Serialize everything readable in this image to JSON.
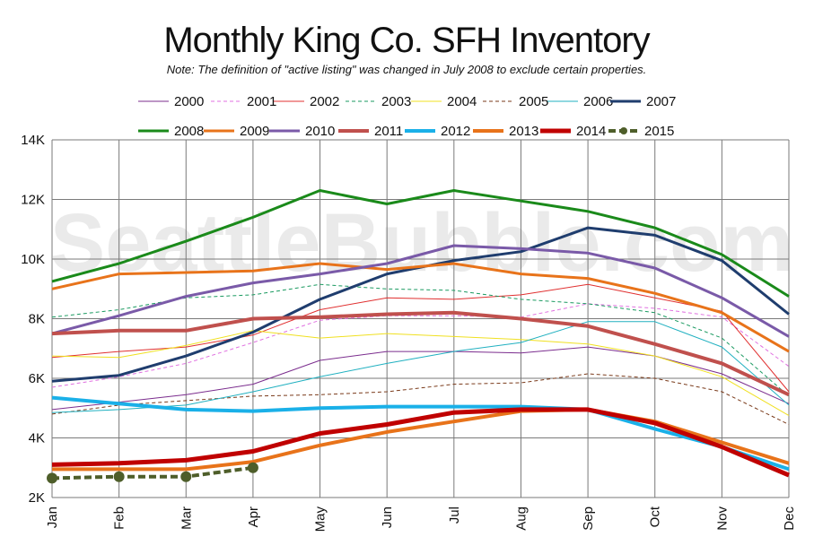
{
  "chart_data": {
    "type": "line",
    "title": "Monthly King Co. SFH Inventory",
    "subtitle": "Note: The definition of \"active listing\" was changed in July 2008 to exclude certain properties.",
    "watermark": "SeattleBubble.com",
    "xlabel": "",
    "ylabel": "",
    "x": [
      "Jan",
      "Feb",
      "Mar",
      "Apr",
      "May",
      "Jun",
      "Jul",
      "Aug",
      "Sep",
      "Oct",
      "Nov",
      "Dec"
    ],
    "ylim": [
      2000,
      14000
    ],
    "yticks": [
      2000,
      4000,
      6000,
      8000,
      10000,
      12000,
      14000
    ],
    "yticklabels": [
      "2K",
      "4K",
      "6K",
      "8K",
      "10K",
      "12K",
      "14K"
    ],
    "grid": true,
    "legend_position": "top",
    "series": [
      {
        "name": "2000",
        "color": "#7b2d8e",
        "style": "solid-thin",
        "values": [
          4950,
          5200,
          5450,
          5800,
          6600,
          6900,
          6900,
          6850,
          7050,
          6750,
          6150,
          5150
        ]
      },
      {
        "name": "2001",
        "color": "#e070e0",
        "style": "dashed-thin",
        "values": [
          5700,
          6050,
          6500,
          7200,
          7950,
          8100,
          8100,
          8050,
          8500,
          8350,
          8050,
          6400
        ]
      },
      {
        "name": "2002",
        "color": "#e03030",
        "style": "solid-thin",
        "values": [
          6700,
          6900,
          7050,
          7450,
          8300,
          8700,
          8650,
          8800,
          9150,
          8700,
          8250,
          5550
        ]
      },
      {
        "name": "2003",
        "color": "#1a9a60",
        "style": "dashed-thin",
        "values": [
          8050,
          8300,
          8700,
          8800,
          9150,
          9000,
          8950,
          8650,
          8500,
          8200,
          7350,
          5400
        ]
      },
      {
        "name": "2004",
        "color": "#f0e020",
        "style": "solid-thin",
        "values": [
          6750,
          6700,
          7100,
          7600,
          7350,
          7500,
          7400,
          7300,
          7150,
          6750,
          6050,
          4750
        ]
      },
      {
        "name": "2005",
        "color": "#7a3a1a",
        "style": "dashed-thin",
        "values": [
          4800,
          5100,
          5250,
          5400,
          5450,
          5550,
          5800,
          5850,
          6150,
          6000,
          5550,
          4450
        ]
      },
      {
        "name": "2006",
        "color": "#20b0c0",
        "style": "solid-thin",
        "values": [
          4850,
          4950,
          5100,
          5550,
          6050,
          6500,
          6900,
          7200,
          7900,
          7900,
          7050,
          5100
        ]
      },
      {
        "name": "2007",
        "color": "#1f3d6e",
        "style": "solid-medium",
        "values": [
          5900,
          6100,
          6750,
          7550,
          8650,
          9500,
          9950,
          10250,
          11050,
          10800,
          9950,
          8150
        ]
      },
      {
        "name": "2008",
        "color": "#1a8a1a",
        "style": "solid-medium",
        "values": [
          9250,
          9850,
          10600,
          11400,
          12300,
          11850,
          12300,
          11950,
          11600,
          11050,
          10150,
          8750
        ]
      },
      {
        "name": "2009",
        "color": "#e8731a",
        "style": "solid-medium",
        "values": [
          9000,
          9500,
          9550,
          9600,
          9850,
          9650,
          9850,
          9500,
          9350,
          8850,
          8200,
          6900
        ]
      },
      {
        "name": "2010",
        "color": "#7a5aa8",
        "style": "solid-medium",
        "values": [
          7500,
          8100,
          8750,
          9200,
          9500,
          9850,
          10450,
          10350,
          10200,
          9700,
          8700,
          7400
        ]
      },
      {
        "name": "2011",
        "color": "#c0504d",
        "style": "solid-thick",
        "values": [
          7500,
          7600,
          7600,
          8000,
          8050,
          8150,
          8200,
          8000,
          7750,
          7150,
          6500,
          5450
        ]
      },
      {
        "name": "2012",
        "color": "#1ab0e8",
        "style": "solid-thick",
        "values": [
          5350,
          5150,
          4950,
          4900,
          5000,
          5050,
          5050,
          5050,
          4950,
          4300,
          3700,
          2950
        ]
      },
      {
        "name": "2013",
        "color": "#e8731a",
        "style": "solid-thick",
        "values": [
          2950,
          2950,
          2950,
          3200,
          3750,
          4200,
          4550,
          4900,
          4950,
          4550,
          3850,
          3150
        ]
      },
      {
        "name": "2014",
        "color": "#c00000",
        "style": "solid-thicker",
        "values": [
          3100,
          3150,
          3250,
          3550,
          4150,
          4450,
          4850,
          4950,
          4950,
          4500,
          3700,
          2750
        ]
      },
      {
        "name": "2015",
        "color": "#4e5e2a",
        "style": "dashed-markers",
        "values": [
          2650,
          2700,
          2700,
          3000,
          null,
          null,
          null,
          null,
          null,
          null,
          null,
          null
        ]
      }
    ]
  }
}
